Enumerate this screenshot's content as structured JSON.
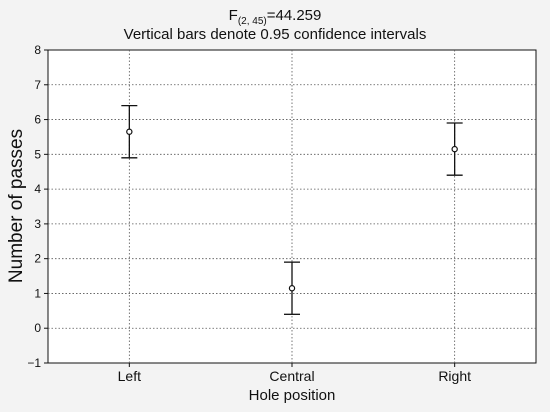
{
  "chart_data": {
    "type": "scatter",
    "title": {
      "stat_main": "F",
      "stat_sub": "(2, 45)",
      "stat_value": "=44.259",
      "subtitle": "Vertical bars denote 0.95 confidence intervals"
    },
    "xlabel": "Hole position",
    "ylabel": "Number of passes",
    "categories": [
      "Left",
      "Central",
      "Right"
    ],
    "ylim": [
      -1,
      8
    ],
    "yticks": [
      -1,
      0,
      1,
      2,
      3,
      4,
      5,
      6,
      7,
      8
    ],
    "ytick_labels": [
      "−1",
      "0",
      "1",
      "2",
      "3",
      "4",
      "5",
      "6",
      "7",
      "8"
    ],
    "grid": true,
    "series": [
      {
        "means": [
          5.65,
          1.15,
          5.15
        ],
        "ci_lower": [
          4.9,
          0.4,
          4.4
        ],
        "ci_upper": [
          6.4,
          1.9,
          5.9
        ]
      }
    ],
    "colors": {
      "background": "#f3f3f3",
      "plot_area": "#ffffff",
      "marks": "#111111",
      "grid": "#555555"
    }
  }
}
